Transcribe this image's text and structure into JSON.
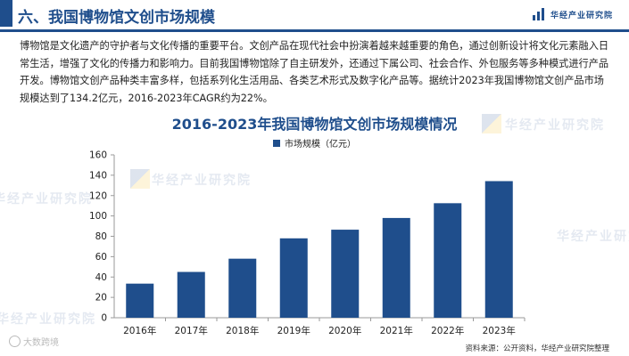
{
  "header": {
    "section_title": "六、我国博物馆文创市场规模",
    "brand": "华经产业研究院"
  },
  "paragraph": "博物馆是文化遗产的守护者与文化传播的重要平台。文创产品在现代社会中扮演着越来越重要的角色，通过创新设计将文化元素融入日常生活，增强了文化的传播力和影响力。目前我国博物馆除了自主研发外，还通过下属公司、社会合作、外包服务等多种模式进行产品开发。博物馆文创产品种类丰富多样，包括系列化生活用品、各类艺术形式及数字化产品等。据统计2023年我国博物馆文创产品市场规模达到了134.2亿元，2016-2023年CAGR约为22%。",
  "watermark": "华经产业研究院",
  "corner_mark": "大数跨境",
  "source": "资料来源：公开资料，华经产业研究院整理",
  "colors": {
    "accent": "#1f4e8c",
    "bar": "#1f4e8c"
  },
  "chart_data": {
    "type": "bar",
    "title": "2016-2023年我国博物馆文创市场规模情况",
    "categories": [
      "2016年",
      "2017年",
      "2018年",
      "2019年",
      "2020年",
      "2021年",
      "2022年",
      "2023年"
    ],
    "series": [
      {
        "name": "市场规模（亿元）",
        "values": [
          33.5,
          45,
          58,
          78,
          86.5,
          98,
          112.5,
          134.2
        ]
      }
    ],
    "xlabel": "",
    "ylabel": "",
    "ylim": [
      0,
      160
    ],
    "yticks": [
      0,
      20,
      40,
      60,
      80,
      100,
      120,
      140,
      160
    ],
    "grid": false,
    "legend_position": "top-center"
  }
}
